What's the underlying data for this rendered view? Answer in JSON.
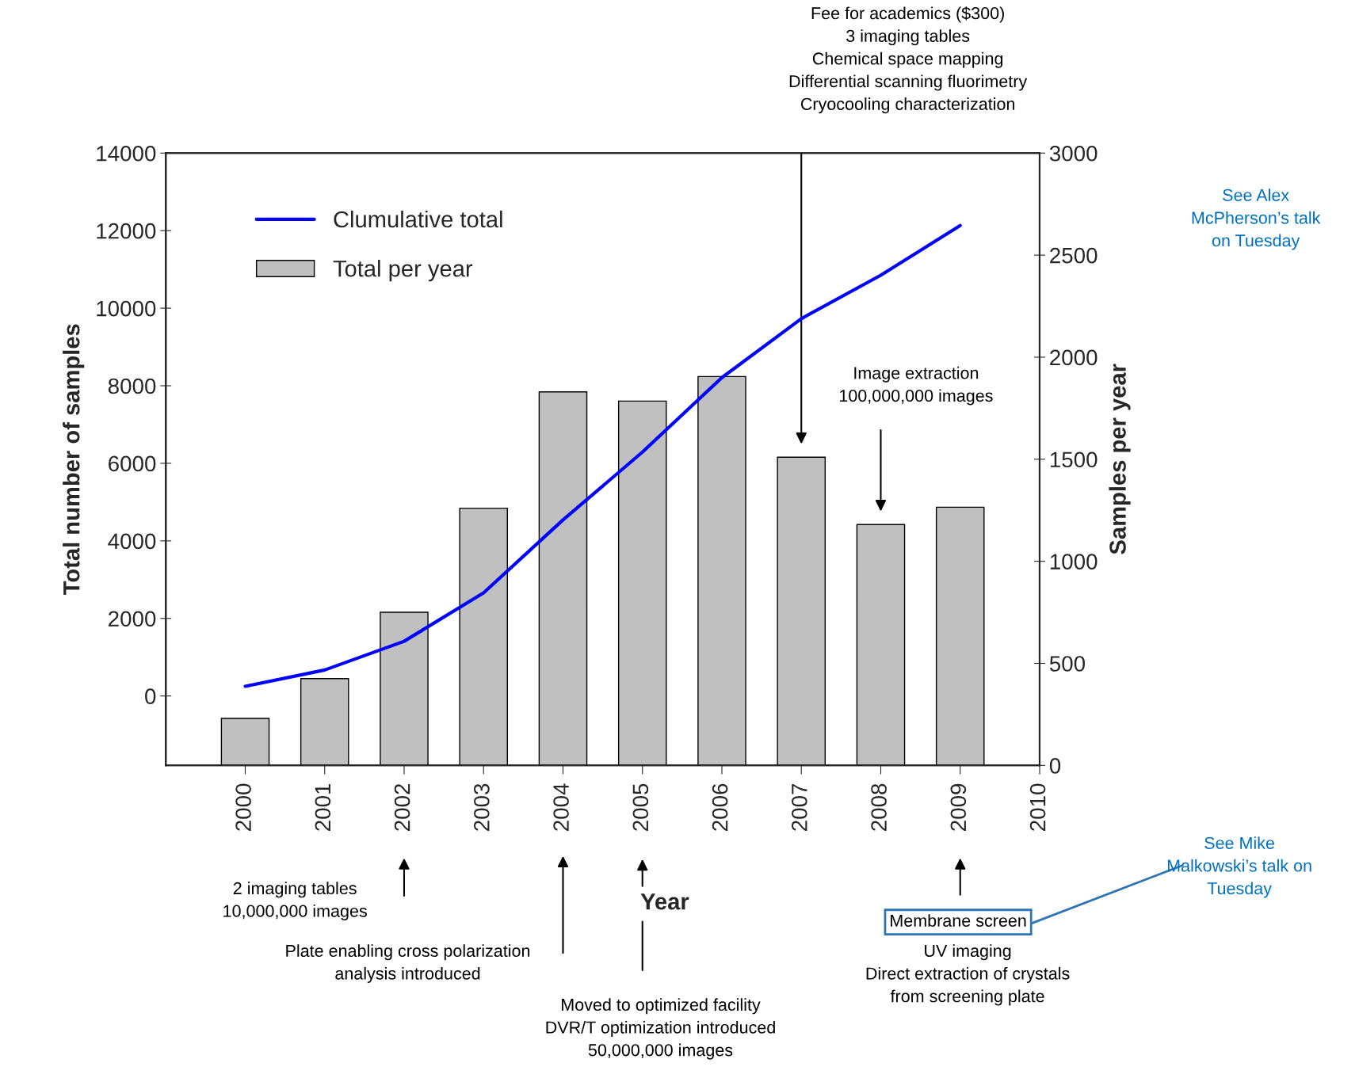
{
  "chart_data": {
    "type": "bar",
    "x": [
      2000,
      2001,
      2002,
      2003,
      2004,
      2005,
      2006,
      2007,
      2008,
      2009
    ],
    "series": [
      {
        "name": "Clumulative total",
        "type": "line",
        "axis": "y",
        "color": "#0000ff",
        "values": [
          250,
          670,
          1410,
          2660,
          4540,
          6290,
          8210,
          9730,
          10850,
          12130
        ]
      },
      {
        "name": "Total per year",
        "axis": "y2",
        "color": "#c0c0c0",
        "values": [
          230,
          425,
          750,
          1260,
          1830,
          1785,
          1905,
          1510,
          1180,
          1265
        ]
      }
    ],
    "xlabel": "Year",
    "ylabel": "Total number of samples",
    "y2label": "Samples per year",
    "xlim": [
      1999,
      2010
    ],
    "xticks": [
      2000,
      2001,
      2002,
      2003,
      2004,
      2005,
      2006,
      2007,
      2008,
      2009,
      2010
    ],
    "ylim": [
      -1790,
      14000
    ],
    "yticks": [
      0,
      2000,
      4000,
      6000,
      8000,
      10000,
      12000,
      14000
    ],
    "y2lim": [
      0,
      3000
    ],
    "y2ticks": [
      0,
      500,
      1000,
      1500,
      2000,
      2500,
      3000
    ],
    "legend": "top left",
    "grid": false,
    "marker": "none",
    "line_style": "solid",
    "annotations": [
      "Fee for academics ($300)\n3 imaging tables\nChemical space mapping\nDifferential scanning fluorimetry\nCryocooling characterization",
      "Image extraction\n100,000,000 images",
      "2 imaging tables\n10,000,000 images",
      "Plate enabling cross polarization\nanalysis introduced",
      "Moved to optimized facility\nDVR/T optimization introduced\n50,000,000 images",
      "Membrane screen",
      "UV imaging\nDirect extraction of crystals\nfrom screening plate",
      "See Alex\nMcPherson’s talk\non Tuesday",
      "See Mike\nMalkowski’s talk on\nTuesday"
    ]
  }
}
